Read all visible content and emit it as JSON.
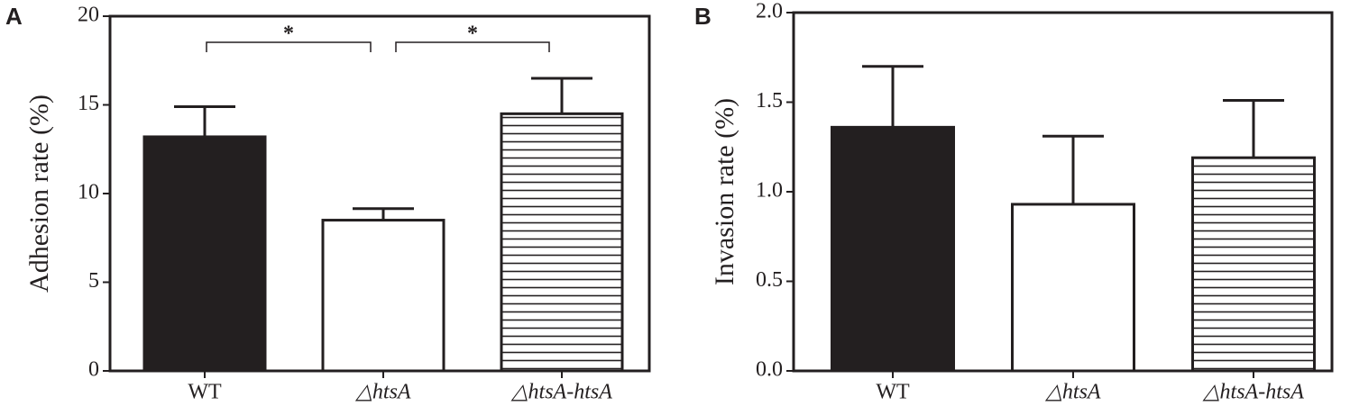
{
  "chart_data": [
    {
      "type": "bar",
      "panel_label": "A",
      "y_label": "Adhesion rate (%)",
      "categories": [
        "WT",
        "△htsA",
        "△htsA-htsA"
      ],
      "values": [
        13.2,
        8.5,
        14.5
      ],
      "errors": [
        1.7,
        0.65,
        2.0
      ],
      "colors": [
        "#231f20",
        "#ffffff",
        "#ffffff"
      ],
      "hatch": [
        "none",
        "none",
        "horizontal"
      ],
      "ylim": [
        0,
        20
      ],
      "yticks": [
        0,
        5,
        10,
        15,
        20
      ],
      "significance": [
        {
          "from": 0,
          "to": 1,
          "label": "*"
        },
        {
          "from": 1,
          "to": 2,
          "label": "*"
        }
      ]
    },
    {
      "type": "bar",
      "panel_label": "B",
      "y_label": "Invasion rate (%)",
      "categories": [
        "WT",
        "△htsA",
        "△htsA-htsA"
      ],
      "values": [
        1.36,
        0.93,
        1.19
      ],
      "errors": [
        0.34,
        0.38,
        0.32
      ],
      "colors": [
        "#231f20",
        "#ffffff",
        "#ffffff"
      ],
      "hatch": [
        "none",
        "none",
        "horizontal"
      ],
      "ylim": [
        0,
        2.0
      ],
      "yticks": [
        {
          "value": 0,
          "label": "0.0"
        },
        {
          "value": 0.5,
          "label": "0.5"
        },
        {
          "value": 1.0,
          "label": "1.0"
        },
        {
          "value": 1.5,
          "label": "1.5"
        },
        {
          "value": 2.0,
          "label": "2.0"
        }
      ]
    }
  ]
}
